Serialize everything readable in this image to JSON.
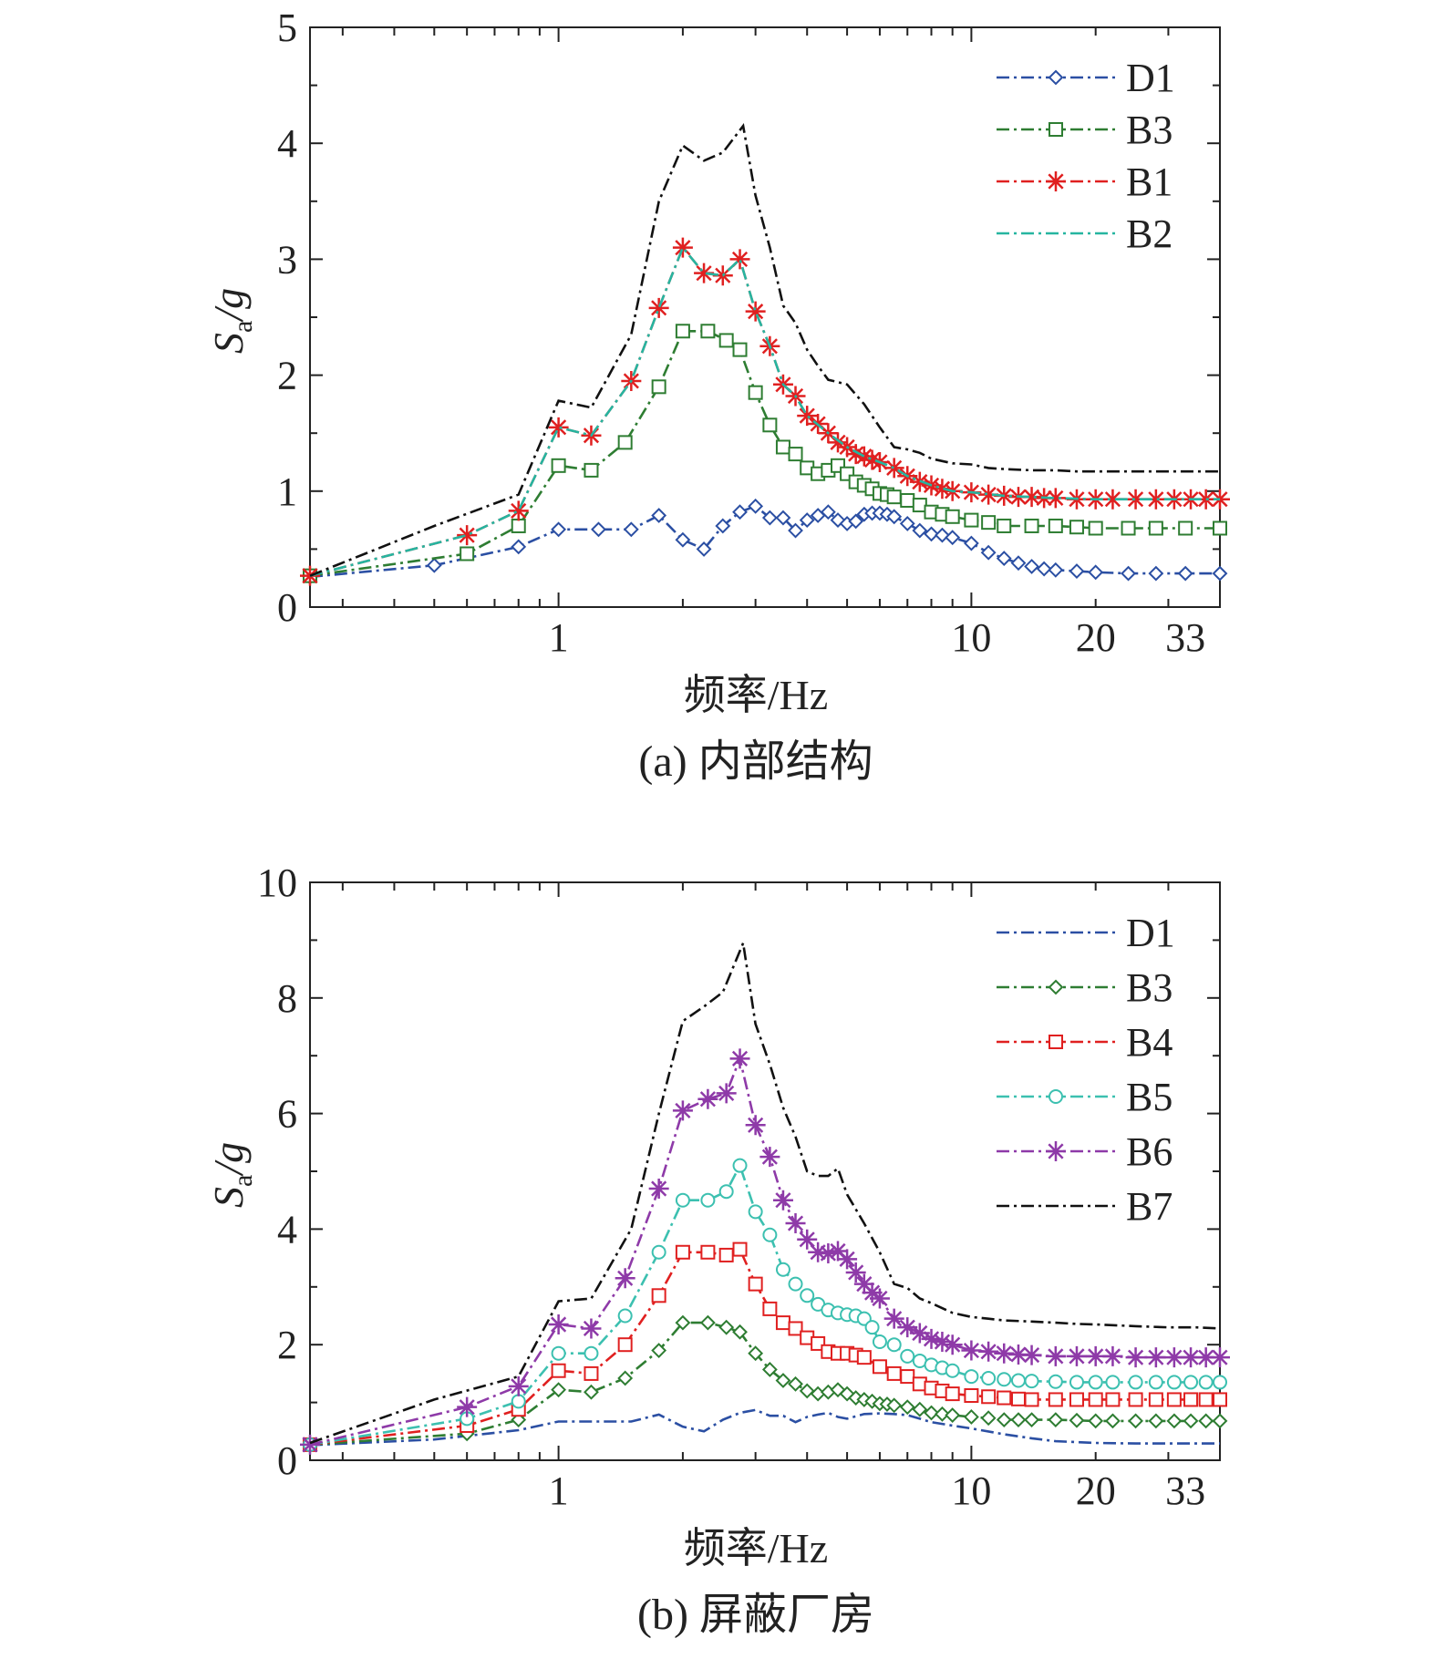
{
  "chart_data": [
    {
      "type": "line",
      "caption": "(a) 内部结构",
      "xlabel": "频率/Hz",
      "ylabel_main": "S",
      "ylabel_sub": "a",
      "ylabel_tail": "/g",
      "xscale": "log",
      "xlim": [
        0.25,
        40
      ],
      "ylim": [
        0,
        5
      ],
      "xticks": [
        1,
        10,
        20,
        33
      ],
      "yticks": [
        0,
        1,
        2,
        3,
        4,
        5
      ],
      "legend_position": "top-right",
      "series": [
        {
          "name": "D1",
          "color": "#2b4fa3",
          "marker": "diamond",
          "marker_step": 1,
          "x": [
            0.25,
            0.5,
            0.8,
            1.0,
            1.25,
            1.5,
            1.75,
            2.0,
            2.25,
            2.5,
            2.75,
            3.0,
            3.25,
            3.5,
            3.75,
            4.0,
            4.25,
            4.5,
            4.75,
            5.0,
            5.25,
            5.5,
            5.75,
            6.0,
            6.25,
            6.5,
            7.0,
            7.5,
            8.0,
            8.5,
            9.0,
            10.0,
            11.0,
            12.0,
            13.0,
            14.0,
            15.0,
            16.0,
            18.0,
            20.0,
            24.0,
            28.0,
            33.0,
            40.0
          ],
          "y": [
            0.26,
            0.36,
            0.52,
            0.67,
            0.67,
            0.67,
            0.79,
            0.58,
            0.5,
            0.7,
            0.82,
            0.87,
            0.77,
            0.77,
            0.66,
            0.75,
            0.79,
            0.82,
            0.75,
            0.72,
            0.74,
            0.8,
            0.81,
            0.81,
            0.8,
            0.78,
            0.72,
            0.66,
            0.63,
            0.62,
            0.6,
            0.55,
            0.47,
            0.42,
            0.38,
            0.35,
            0.33,
            0.32,
            0.31,
            0.3,
            0.29,
            0.29,
            0.29,
            0.29
          ]
        },
        {
          "name": "B3",
          "color": "#2e7d32",
          "marker": "square",
          "marker_step": 1,
          "x": [
            0.25,
            0.6,
            0.8,
            1.0,
            1.2,
            1.45,
            1.75,
            2.0,
            2.3,
            2.55,
            2.75,
            3.0,
            3.25,
            3.5,
            3.75,
            4.0,
            4.25,
            4.5,
            4.75,
            5.0,
            5.25,
            5.5,
            5.75,
            6.0,
            6.25,
            6.5,
            7.0,
            7.5,
            8.0,
            8.5,
            9.0,
            10.0,
            11.0,
            12.0,
            14.0,
            16.0,
            18.0,
            20.0,
            24.0,
            28.0,
            33.0,
            40.0
          ],
          "y": [
            0.27,
            0.46,
            0.7,
            1.22,
            1.18,
            1.42,
            1.9,
            2.38,
            2.38,
            2.3,
            2.22,
            1.85,
            1.57,
            1.38,
            1.32,
            1.2,
            1.15,
            1.18,
            1.22,
            1.15,
            1.08,
            1.05,
            1.02,
            0.98,
            0.97,
            0.95,
            0.92,
            0.88,
            0.82,
            0.8,
            0.78,
            0.75,
            0.73,
            0.7,
            0.7,
            0.7,
            0.69,
            0.68,
            0.68,
            0.68,
            0.68,
            0.68
          ]
        },
        {
          "name": "B1",
          "color": "#e02020",
          "marker": "star",
          "marker_step": 1,
          "x": [
            0.25,
            0.6,
            0.8,
            1.0,
            1.2,
            1.5,
            1.75,
            2.0,
            2.25,
            2.5,
            2.75,
            3.0,
            3.25,
            3.5,
            3.75,
            4.0,
            4.25,
            4.5,
            4.75,
            5.0,
            5.25,
            5.5,
            5.75,
            6.0,
            6.5,
            7.0,
            7.5,
            8.0,
            8.5,
            9.0,
            10.0,
            11.0,
            12.0,
            13.0,
            14.0,
            15.0,
            16.0,
            18.0,
            20.0,
            22.0,
            25.0,
            28.0,
            31.0,
            34.0,
            37.0,
            40.0
          ],
          "y": [
            0.27,
            0.62,
            0.83,
            1.55,
            1.48,
            1.95,
            2.58,
            3.1,
            2.88,
            2.86,
            3.0,
            2.55,
            2.25,
            1.92,
            1.82,
            1.65,
            1.58,
            1.5,
            1.42,
            1.38,
            1.32,
            1.3,
            1.27,
            1.25,
            1.2,
            1.13,
            1.08,
            1.05,
            1.02,
            1.0,
            0.99,
            0.97,
            0.96,
            0.95,
            0.95,
            0.94,
            0.94,
            0.93,
            0.93,
            0.93,
            0.93,
            0.93,
            0.93,
            0.93,
            0.93,
            0.93
          ]
        },
        {
          "name": "B2",
          "color": "#26b5a0",
          "marker": "none",
          "marker_step": 1,
          "x": [
            0.25,
            0.6,
            0.8,
            1.0,
            1.2,
            1.5,
            1.75,
            2.0,
            2.25,
            2.5,
            2.75,
            3.0,
            3.25,
            3.5,
            3.75,
            4.0,
            4.5,
            5.0,
            5.5,
            6.0,
            6.5,
            7.0,
            8.0,
            9.0,
            10.0,
            12.0,
            16.0,
            20.0,
            28.0,
            40.0
          ],
          "y": [
            0.27,
            0.62,
            0.83,
            1.55,
            1.48,
            1.95,
            2.58,
            3.1,
            2.88,
            2.86,
            3.0,
            2.55,
            2.25,
            1.92,
            1.82,
            1.65,
            1.5,
            1.38,
            1.3,
            1.25,
            1.2,
            1.13,
            1.05,
            1.0,
            0.99,
            0.96,
            0.94,
            0.93,
            0.93,
            0.93
          ]
        },
        {
          "name": "",
          "color": "#111111",
          "marker": "none",
          "marker_step": 1,
          "x": [
            0.25,
            0.5,
            0.8,
            1.0,
            1.2,
            1.5,
            1.75,
            2.0,
            2.25,
            2.5,
            2.8,
            3.0,
            3.25,
            3.5,
            3.75,
            4.0,
            4.25,
            4.5,
            4.75,
            5.0,
            5.5,
            6.0,
            6.5,
            7.0,
            7.5,
            8.0,
            9.0,
            10.0,
            11.0,
            12.0,
            14.0,
            16.0,
            18.0,
            20.0,
            25.0,
            30.0,
            40.0
          ],
          "y": [
            0.27,
            0.7,
            0.97,
            1.78,
            1.72,
            2.35,
            3.5,
            3.98,
            3.85,
            3.92,
            4.15,
            3.55,
            3.1,
            2.6,
            2.45,
            2.22,
            2.08,
            1.96,
            1.94,
            1.92,
            1.75,
            1.55,
            1.38,
            1.36,
            1.33,
            1.28,
            1.24,
            1.23,
            1.2,
            1.19,
            1.18,
            1.18,
            1.17,
            1.17,
            1.17,
            1.17,
            1.17
          ]
        }
      ]
    },
    {
      "type": "line",
      "caption": "(b) 屏蔽厂房",
      "xlabel": "频率/Hz",
      "ylabel_main": "S",
      "ylabel_sub": "a",
      "ylabel_tail": "/g",
      "xscale": "log",
      "xlim": [
        0.25,
        40
      ],
      "ylim": [
        0,
        10
      ],
      "xticks": [
        1,
        10,
        20,
        33
      ],
      "yticks": [
        0,
        2,
        4,
        6,
        8,
        10
      ],
      "legend_position": "top-right",
      "series": [
        {
          "name": "D1",
          "color": "#2b4fa3",
          "marker": "none",
          "marker_step": 1,
          "x": [
            0.25,
            0.5,
            0.8,
            1.0,
            1.25,
            1.5,
            1.75,
            2.0,
            2.25,
            2.5,
            2.75,
            3.0,
            3.25,
            3.5,
            3.75,
            4.0,
            4.25,
            4.5,
            4.75,
            5.0,
            5.5,
            6.0,
            6.5,
            7.0,
            7.5,
            8.0,
            9.0,
            10.0,
            12.0,
            14.0,
            16.0,
            20.0,
            25.0,
            33.0,
            40.0
          ],
          "y": [
            0.26,
            0.36,
            0.52,
            0.67,
            0.67,
            0.67,
            0.79,
            0.58,
            0.5,
            0.7,
            0.82,
            0.87,
            0.77,
            0.77,
            0.66,
            0.75,
            0.79,
            0.82,
            0.75,
            0.72,
            0.8,
            0.81,
            0.8,
            0.78,
            0.72,
            0.66,
            0.6,
            0.55,
            0.45,
            0.38,
            0.33,
            0.3,
            0.29,
            0.29,
            0.29
          ]
        },
        {
          "name": "B3",
          "color": "#2e7d32",
          "marker": "diamond",
          "marker_step": 1,
          "x": [
            0.25,
            0.6,
            0.8,
            1.0,
            1.2,
            1.45,
            1.75,
            2.0,
            2.3,
            2.55,
            2.75,
            3.0,
            3.25,
            3.5,
            3.75,
            4.0,
            4.25,
            4.5,
            4.75,
            5.0,
            5.25,
            5.5,
            5.75,
            6.0,
            6.25,
            6.5,
            7.0,
            7.5,
            8.0,
            8.5,
            9.0,
            10.0,
            11.0,
            12.0,
            13.0,
            14.0,
            16.0,
            18.0,
            20.0,
            22.0,
            25.0,
            28.0,
            31.0,
            34.0,
            37.0,
            40.0
          ],
          "y": [
            0.27,
            0.46,
            0.7,
            1.22,
            1.18,
            1.42,
            1.9,
            2.38,
            2.38,
            2.3,
            2.22,
            1.85,
            1.57,
            1.38,
            1.32,
            1.2,
            1.15,
            1.18,
            1.22,
            1.15,
            1.08,
            1.05,
            1.02,
            0.98,
            0.97,
            0.95,
            0.92,
            0.88,
            0.82,
            0.8,
            0.78,
            0.75,
            0.73,
            0.7,
            0.7,
            0.7,
            0.7,
            0.69,
            0.68,
            0.68,
            0.68,
            0.68,
            0.68,
            0.68,
            0.68,
            0.68
          ]
        },
        {
          "name": "B4",
          "color": "#e02020",
          "marker": "square",
          "marker_step": 1,
          "x": [
            0.25,
            0.6,
            0.8,
            1.0,
            1.2,
            1.45,
            1.75,
            2.0,
            2.3,
            2.55,
            2.75,
            3.0,
            3.25,
            3.5,
            3.75,
            4.0,
            4.25,
            4.5,
            4.75,
            5.0,
            5.25,
            5.5,
            6.0,
            6.5,
            7.0,
            7.5,
            8.0,
            8.5,
            9.0,
            10.0,
            11.0,
            12.0,
            13.0,
            14.0,
            16.0,
            18.0,
            20.0,
            22.0,
            25.0,
            28.0,
            31.0,
            34.0,
            37.0,
            40.0
          ],
          "y": [
            0.27,
            0.6,
            0.88,
            1.55,
            1.5,
            2.0,
            2.85,
            3.6,
            3.6,
            3.55,
            3.65,
            3.05,
            2.62,
            2.38,
            2.28,
            2.12,
            2.02,
            1.88,
            1.85,
            1.85,
            1.82,
            1.78,
            1.62,
            1.5,
            1.45,
            1.32,
            1.25,
            1.2,
            1.15,
            1.12,
            1.1,
            1.08,
            1.06,
            1.05,
            1.05,
            1.05,
            1.05,
            1.05,
            1.05,
            1.05,
            1.05,
            1.05,
            1.05,
            1.05
          ]
        },
        {
          "name": "B5",
          "color": "#3cc0b0",
          "marker": "circle",
          "marker_step": 1,
          "x": [
            0.25,
            0.6,
            0.8,
            1.0,
            1.2,
            1.45,
            1.75,
            2.0,
            2.3,
            2.55,
            2.75,
            3.0,
            3.25,
            3.5,
            3.75,
            4.0,
            4.25,
            4.5,
            4.75,
            5.0,
            5.25,
            5.5,
            5.75,
            6.0,
            6.5,
            7.0,
            7.5,
            8.0,
            8.5,
            9.0,
            10.0,
            11.0,
            12.0,
            13.0,
            14.0,
            16.0,
            18.0,
            20.0,
            22.0,
            25.0,
            28.0,
            31.0,
            34.0,
            37.0,
            40.0
          ],
          "y": [
            0.27,
            0.72,
            1.02,
            1.85,
            1.85,
            2.5,
            3.6,
            4.5,
            4.5,
            4.65,
            5.1,
            4.3,
            3.9,
            3.3,
            3.05,
            2.85,
            2.7,
            2.6,
            2.55,
            2.52,
            2.5,
            2.45,
            2.3,
            2.05,
            2.0,
            1.8,
            1.72,
            1.65,
            1.6,
            1.55,
            1.45,
            1.42,
            1.4,
            1.38,
            1.37,
            1.36,
            1.35,
            1.35,
            1.35,
            1.35,
            1.35,
            1.35,
            1.35,
            1.35,
            1.35
          ]
        },
        {
          "name": "B6",
          "color": "#8e3aa8",
          "marker": "star",
          "marker_step": 1,
          "x": [
            0.25,
            0.6,
            0.8,
            1.0,
            1.2,
            1.45,
            1.75,
            2.0,
            2.3,
            2.55,
            2.75,
            3.0,
            3.25,
            3.5,
            3.75,
            4.0,
            4.25,
            4.5,
            4.75,
            5.0,
            5.25,
            5.5,
            5.75,
            6.0,
            6.5,
            7.0,
            7.5,
            8.0,
            8.5,
            9.0,
            10.0,
            11.0,
            12.0,
            13.0,
            14.0,
            16.0,
            18.0,
            20.0,
            22.0,
            25.0,
            28.0,
            31.0,
            34.0,
            37.0,
            40.0
          ],
          "y": [
            0.27,
            0.92,
            1.28,
            2.35,
            2.28,
            3.15,
            4.7,
            6.05,
            6.25,
            6.35,
            6.95,
            5.8,
            5.25,
            4.5,
            4.1,
            3.82,
            3.6,
            3.58,
            3.62,
            3.48,
            3.25,
            3.05,
            2.9,
            2.8,
            2.45,
            2.3,
            2.2,
            2.1,
            2.05,
            2.0,
            1.9,
            1.88,
            1.85,
            1.83,
            1.82,
            1.8,
            1.8,
            1.8,
            1.8,
            1.78,
            1.78,
            1.78,
            1.78,
            1.78,
            1.78
          ]
        },
        {
          "name": "B7",
          "color": "#111111",
          "marker": "none",
          "marker_step": 1,
          "x": [
            0.25,
            0.5,
            0.8,
            1.0,
            1.2,
            1.5,
            1.75,
            2.0,
            2.25,
            2.5,
            2.8,
            3.0,
            3.25,
            3.5,
            3.75,
            4.0,
            4.25,
            4.5,
            4.75,
            5.0,
            5.5,
            6.0,
            6.5,
            7.0,
            7.5,
            8.0,
            9.0,
            10.0,
            11.0,
            12.0,
            14.0,
            16.0,
            18.0,
            20.0,
            25.0,
            30.0,
            35.0,
            40.0
          ],
          "y": [
            0.3,
            1.05,
            1.45,
            2.75,
            2.8,
            4.0,
            6.0,
            7.6,
            7.85,
            8.1,
            8.95,
            7.55,
            6.85,
            6.1,
            5.6,
            5.0,
            4.92,
            4.92,
            5.05,
            4.6,
            4.1,
            3.6,
            3.05,
            2.98,
            2.8,
            2.72,
            2.55,
            2.48,
            2.45,
            2.42,
            2.4,
            2.38,
            2.36,
            2.35,
            2.32,
            2.3,
            2.3,
            2.28
          ]
        }
      ]
    }
  ]
}
